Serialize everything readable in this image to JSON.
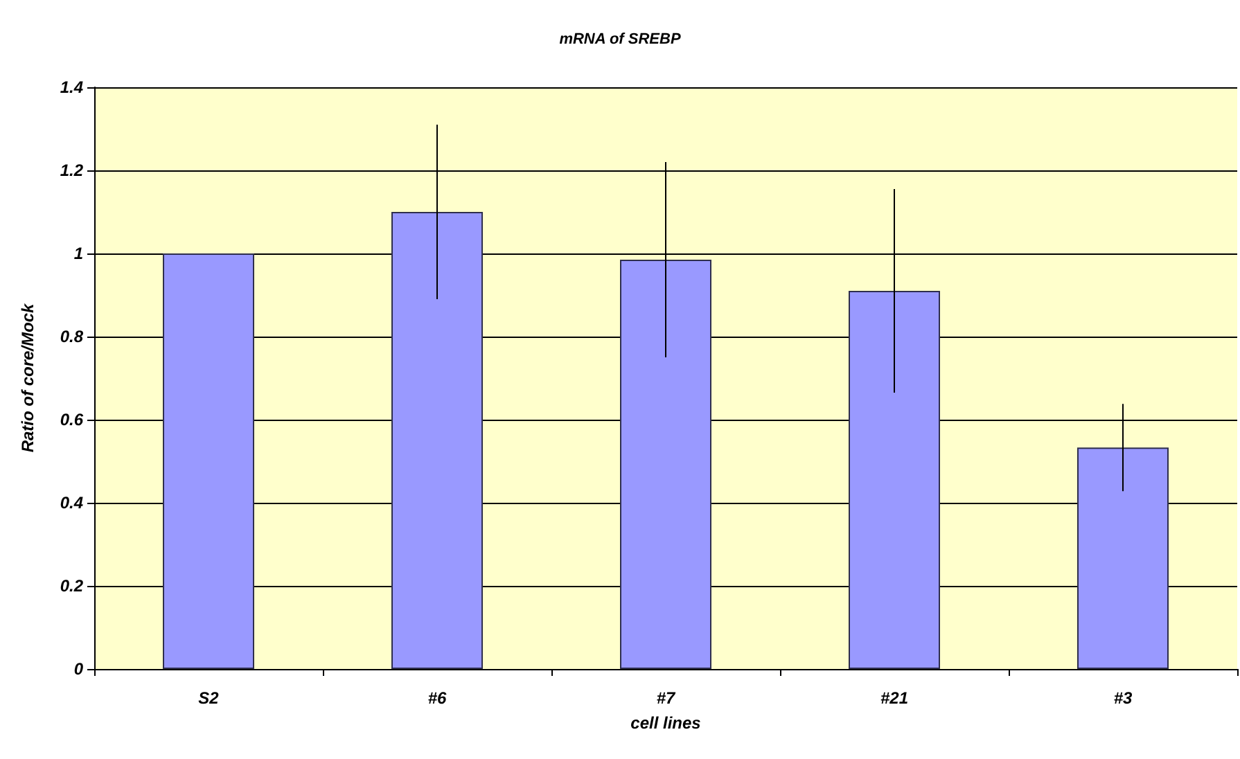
{
  "chart_data": {
    "type": "bar",
    "title": "mRNA of SREBP",
    "xlabel": "cell lines",
    "ylabel": "Ratio of core/Mock",
    "categories": [
      "S2",
      "#6",
      "#7",
      "#21",
      "#3"
    ],
    "values": [
      1.0,
      1.1,
      0.985,
      0.91,
      0.533
    ],
    "errors": [
      null,
      0.21,
      0.235,
      0.245,
      0.105
    ],
    "color": "#9999ff",
    "ylim": [
      0,
      1.4
    ],
    "yticks": [
      0,
      0.2,
      0.4,
      0.6,
      0.8,
      1,
      1.2,
      1.4
    ],
    "grid": "y"
  }
}
